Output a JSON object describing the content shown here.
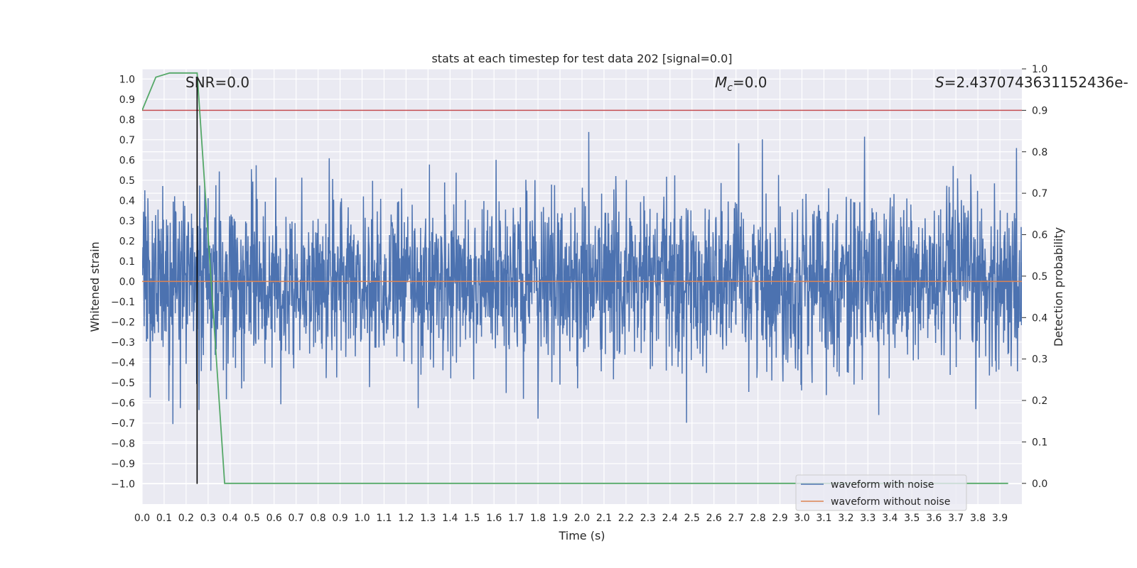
{
  "chart_data": {
    "type": "line",
    "title": "stats at each timestep for test data 202 [signal=0.0]",
    "xlabel": "Time (s)",
    "ylabel": "Whitened strain",
    "y2label": "Detection probability",
    "xlim": [
      0.0,
      4.0
    ],
    "ylim": [
      -1.1,
      1.05
    ],
    "y2lim": [
      -0.05,
      1.0
    ],
    "x_ticks": [
      "0.0",
      "0.1",
      "0.2",
      "0.3",
      "0.4",
      "0.5",
      "0.6",
      "0.7",
      "0.8",
      "0.9",
      "1.0",
      "1.1",
      "1.2",
      "1.3",
      "1.4",
      "1.5",
      "1.6",
      "1.7",
      "1.8",
      "1.9",
      "2.0",
      "2.1",
      "2.2",
      "2.3",
      "2.4",
      "2.5",
      "2.6",
      "2.7",
      "2.8",
      "2.9",
      "3.0",
      "3.1",
      "3.2",
      "3.3",
      "3.4",
      "3.5",
      "3.6",
      "3.7",
      "3.8",
      "3.9"
    ],
    "y_ticks": [
      "1.0",
      "0.9",
      "0.8",
      "0.7",
      "0.6",
      "0.5",
      "0.4",
      "0.3",
      "0.2",
      "0.1",
      "0.0",
      "−0.1",
      "−0.2",
      "−0.3",
      "−0.4",
      "−0.5",
      "−0.6",
      "−0.7",
      "−0.8",
      "−0.9",
      "−1.0"
    ],
    "y2_ticks": [
      "1.0",
      "0.9",
      "0.8",
      "0.7",
      "0.6",
      "0.5",
      "0.4",
      "0.3",
      "0.2",
      "0.1",
      "0.0"
    ],
    "annotations": {
      "snr": "SNR=0.0",
      "mc_symbol": "M",
      "mc_sub": "c",
      "mc_value": "=0.0",
      "s_symbol": "S",
      "s_value": "=2.4370743631152436e-"
    },
    "grid": true,
    "legend_position": "lower-right",
    "series": [
      {
        "name": "waveform with noise",
        "axis": "left",
        "color": "#4c72b0",
        "description_of_values": "noise",
        "noise_std": 0.21,
        "x_range": [
          0.0,
          4.0
        ]
      },
      {
        "name": "waveform without noise",
        "axis": "left",
        "color": "#dd8452",
        "x": [
          0.0,
          4.0
        ],
        "y": [
          0.0,
          0.0
        ]
      },
      {
        "axis": "right",
        "color": "#55a868",
        "x": [
          0.0,
          0.0625,
          0.125,
          0.1875,
          0.25,
          0.3125,
          0.375,
          3.9375
        ],
        "y": [
          0.9,
          0.98,
          0.99,
          0.99,
          0.99,
          0.5,
          0.0,
          0.0
        ]
      }
    ],
    "reference_lines": {
      "threshold_y2": 0.9,
      "threshold_color": "#c44e52",
      "vline_x": 0.25,
      "vline_color": "#000000"
    }
  }
}
